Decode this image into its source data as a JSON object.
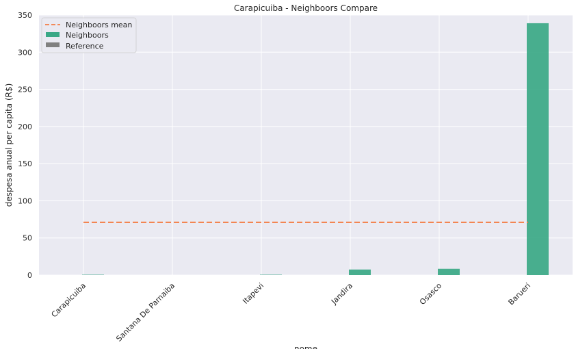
{
  "chart_data": {
    "type": "bar",
    "title": "Carapicuiba - Neighboors Compare",
    "xlabel": "nome",
    "ylabel": "despesa anual per capita (R$)",
    "ylim": [
      0,
      350
    ],
    "yticks": [
      0,
      50,
      100,
      150,
      200,
      250,
      300,
      350
    ],
    "grid": true,
    "legend_position": "top-left",
    "categories": [
      "Carapicuiba",
      "Santana De Parnaiba",
      "Itapevi",
      "Jandira",
      "Osasco",
      "Barueri"
    ],
    "series": [
      {
        "name": "Neighboors",
        "type": "bar",
        "color": "#3aa886",
        "values": [
          0.5,
          0,
          0.5,
          7.5,
          8.5,
          339
        ]
      },
      {
        "name": "Reference",
        "type": "bar",
        "color": "#808080",
        "values": [
          0,
          0,
          0,
          0,
          0,
          0
        ]
      }
    ],
    "mean_line": {
      "name": "Neighboors mean",
      "value": 71,
      "color": "#f47c44",
      "style": "dashed"
    },
    "colors": {
      "background": "#eaeaf2",
      "grid": "#ffffff"
    }
  }
}
